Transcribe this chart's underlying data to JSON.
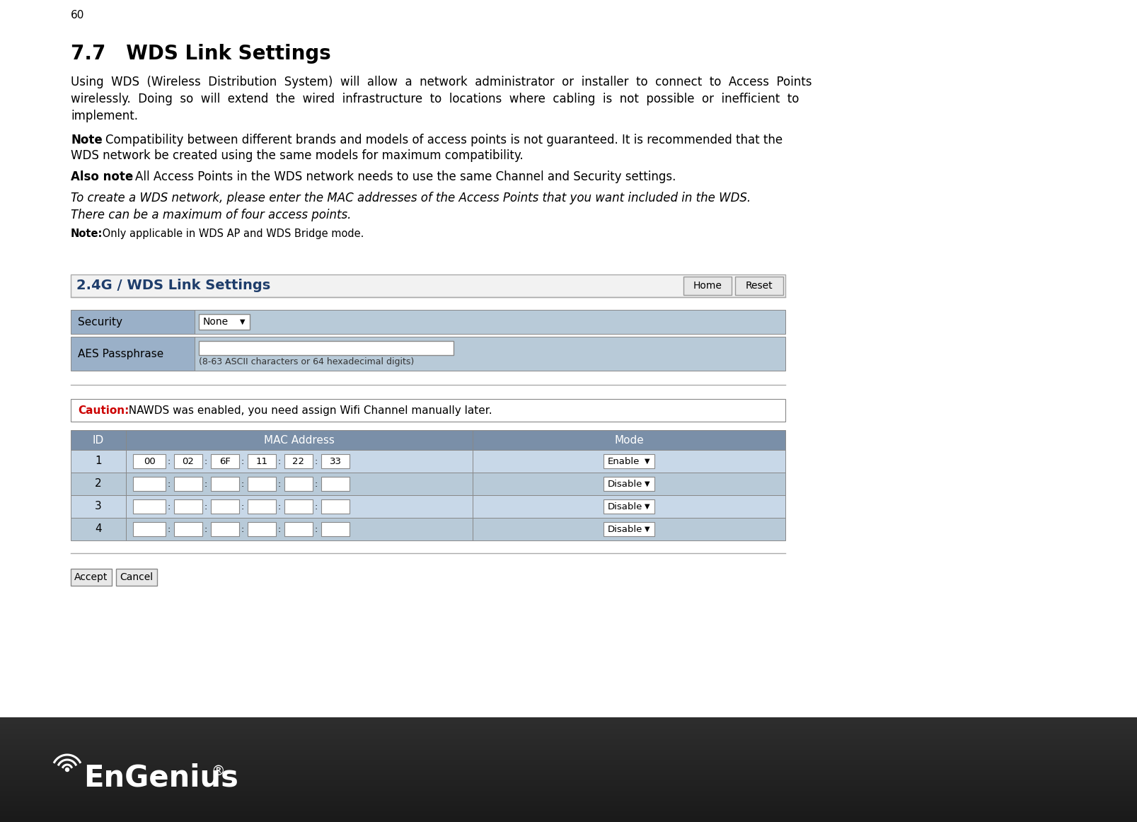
{
  "page_number": "60",
  "section_title": "7.7   WDS Link Settings",
  "body_line1": "Using  WDS  (Wireless  Distribution  System)  will  allow  a  network  administrator  or  installer  to  connect  to  Access  Points",
  "body_line2": "wirelessly.  Doing  so  will  extend  the  wired  infrastructure  to  locations  where  cabling  is  not  possible  or  inefficient  to",
  "body_line3": "implement.",
  "note1_bold": "Note",
  "note1_rest_line1": ": Compatibility between different brands and models of access points is not guaranteed. It is recommended that the",
  "note1_line2": "WDS network be created using the same models for maximum compatibility.",
  "note2_bold": "Also note",
  "note2_rest": ": All Access Points in the WDS network needs to use the same Channel and Security settings.",
  "italic_line1": "To create a WDS network, please enter the MAC addresses of the Access Points that you want included in the WDS.",
  "italic_line2": "There can be a maximum of four access points.",
  "note3_bold": "Note:",
  "note3_rest": " Only applicable in WDS AP and WDS Bridge mode.",
  "panel_title": "2.4G / WDS Link Settings",
  "btn_home": "Home",
  "btn_reset": "Reset",
  "security_label": "Security",
  "security_value": "None",
  "passphrase_label": "AES Passphrase",
  "passphrase_hint": "(8-63 ASCII characters or 64 hexadecimal digits)",
  "caution_bold": "Caution:",
  "caution_text": "  NAWDS was enabled, you need assign Wifi Channel manually later.",
  "table_col0": "ID",
  "table_col1": "MAC Address",
  "table_col2": "Mode",
  "mac_row1": [
    "00",
    "02",
    "6F",
    "11",
    "22",
    "33"
  ],
  "row1_mode": "Enable",
  "rows_mode": "Disable",
  "btn_accept": "Accept",
  "btn_cancel": "Cancel",
  "bg_color": "#ffffff",
  "panel_title_color": "#1e3d6b",
  "table_header_bg": "#7a8fa8",
  "table_row_bg": "#b8cad8",
  "table_alt_bg": "#c8d8e8",
  "caution_color": "#cc0000",
  "footer_bg_top": "#1a1a1a",
  "footer_bg_bot": "#3a3a3a",
  "label_bg": "#9ab0c8",
  "content_bg": "#b8cad8",
  "input_bg": "#ffffff",
  "btn_bg": "#e8e8e8",
  "border_color": "#888888",
  "sep_color": "#aaaaaa",
  "footer_logo": "EnGenius"
}
